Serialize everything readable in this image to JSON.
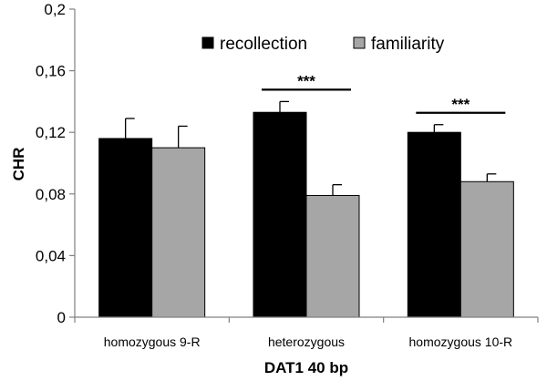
{
  "chart_data": {
    "type": "bar",
    "title": "",
    "xlabel": "DAT1 40 bp",
    "ylabel": "CHR",
    "ylim": [
      0,
      0.2
    ],
    "yticks": [
      {
        "value": 0,
        "label": "0"
      },
      {
        "value": 0.04,
        "label": "0,04"
      },
      {
        "value": 0.08,
        "label": "0,08"
      },
      {
        "value": 0.12,
        "label": "0,12"
      },
      {
        "value": 0.16,
        "label": "0,16"
      },
      {
        "value": 0.2,
        "label": "0,2"
      }
    ],
    "categories": [
      "homozygous 9-R",
      "heterozygous",
      "homozygous 10-R"
    ],
    "series": [
      {
        "name": "recollection",
        "color": "#000000",
        "values": [
          0.116,
          0.133,
          0.12
        ],
        "errors": [
          0.013,
          0.007,
          0.005
        ]
      },
      {
        "name": "familiarity",
        "color": "#a6a6a6",
        "values": [
          0.11,
          0.079,
          0.088
        ],
        "errors": [
          0.014,
          0.007,
          0.005
        ]
      }
    ],
    "significance": [
      {
        "category_index": 1,
        "label": "***"
      },
      {
        "category_index": 2,
        "label": "***"
      }
    ],
    "legend_position": "top-center",
    "grid": false
  }
}
